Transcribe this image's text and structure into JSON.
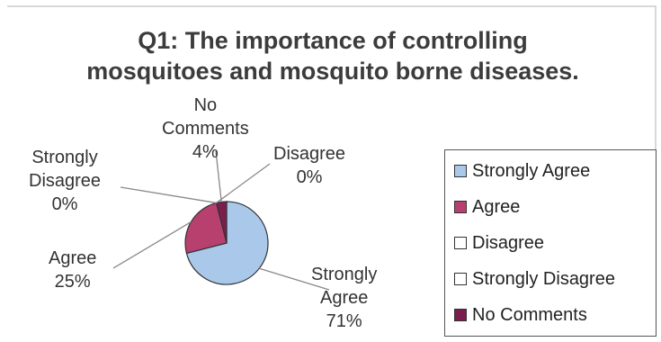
{
  "chart_data": {
    "type": "pie",
    "title": "Q1: The importance of controlling mosquitoes and  mosquito borne diseases.",
    "categories": [
      "Strongly Agree",
      "Agree",
      "Disagree",
      "Strongly Disagree",
      "No Comments"
    ],
    "values": [
      71,
      25,
      0,
      0,
      4
    ],
    "data_labels": [
      {
        "line1": "Strongly",
        "line2": "Agree",
        "pct": "71%"
      },
      {
        "line1": "Agree",
        "line2": "",
        "pct": "25%"
      },
      {
        "line1": "Disagree",
        "line2": "",
        "pct": "0%"
      },
      {
        "line1": "Strongly",
        "line2": "Disagree",
        "pct": "0%"
      },
      {
        "line1": "No",
        "line2": "Comments",
        "pct": "4%"
      }
    ],
    "colors": [
      "#a9c8ea",
      "#b8406f",
      "#ffffff",
      "#ffffff",
      "#7a1e4e"
    ],
    "legend_position": "right"
  }
}
